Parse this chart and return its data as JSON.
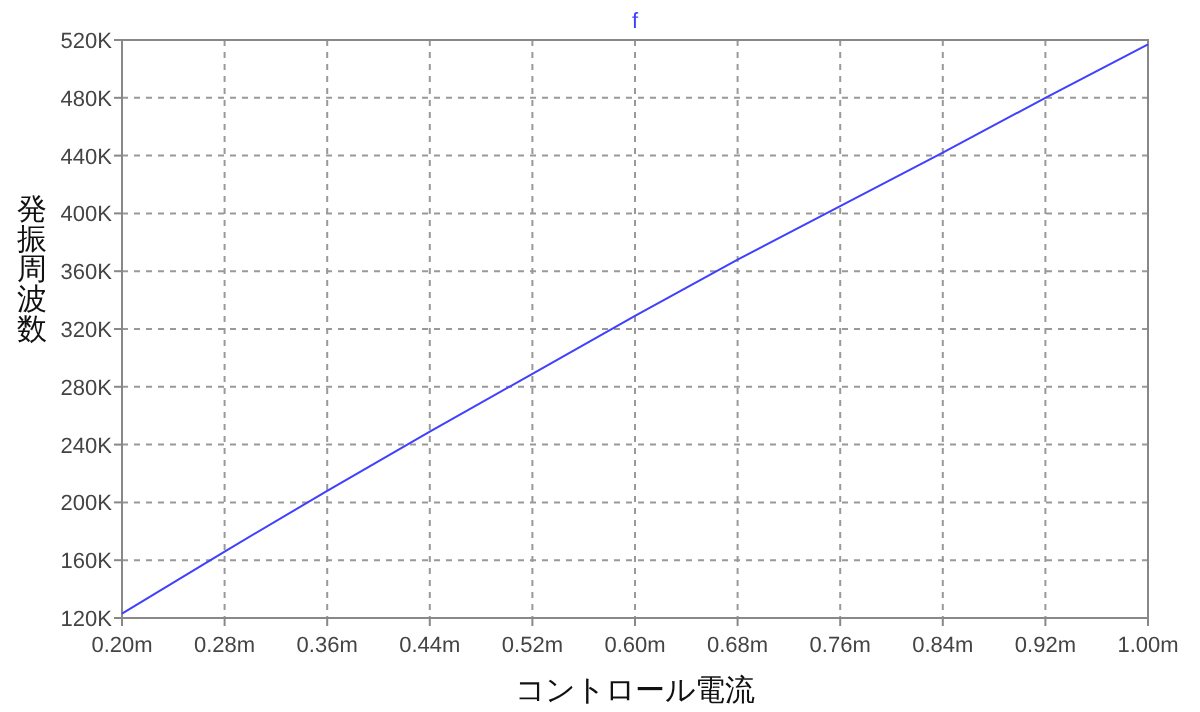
{
  "chart_data": {
    "type": "line",
    "xlabel": "コントロール電流",
    "ylabel": "発振周波数",
    "x": [
      0.2,
      0.28,
      0.36,
      0.44,
      0.52,
      0.6,
      0.68,
      0.76,
      0.84,
      0.92,
      1.0
    ],
    "series": [
      {
        "name": "f",
        "color": "#4040ff",
        "values": [
          123,
          166,
          208,
          249,
          289,
          329,
          368,
          405,
          442,
          480,
          517
        ]
      }
    ],
    "xlim": [
      0.2,
      1.0
    ],
    "xticks": [
      {
        "value": 0.2,
        "label": "0.20m"
      },
      {
        "value": 0.28,
        "label": "0.28m"
      },
      {
        "value": 0.36,
        "label": "0.36m"
      },
      {
        "value": 0.44,
        "label": "0.44m"
      },
      {
        "value": 0.52,
        "label": "0.52m"
      },
      {
        "value": 0.6,
        "label": "0.60m"
      },
      {
        "value": 0.68,
        "label": "0.68m"
      },
      {
        "value": 0.76,
        "label": "0.76m"
      },
      {
        "value": 0.84,
        "label": "0.84m"
      },
      {
        "value": 0.92,
        "label": "0.92m"
      },
      {
        "value": 1.0,
        "label": "1.00m"
      }
    ],
    "ylim": [
      120,
      520
    ],
    "yticks": [
      {
        "value": 120,
        "label": "120K"
      },
      {
        "value": 160,
        "label": "160K"
      },
      {
        "value": 200,
        "label": "200K"
      },
      {
        "value": 240,
        "label": "240K"
      },
      {
        "value": 280,
        "label": "280K"
      },
      {
        "value": 320,
        "label": "320K"
      },
      {
        "value": 360,
        "label": "360K"
      },
      {
        "value": 400,
        "label": "400K"
      },
      {
        "value": 440,
        "label": "440K"
      },
      {
        "value": 480,
        "label": "480K"
      },
      {
        "value": 520,
        "label": "520K"
      }
    ],
    "grid": true,
    "legend": "top",
    "line_style": "solid",
    "marker": "none"
  }
}
